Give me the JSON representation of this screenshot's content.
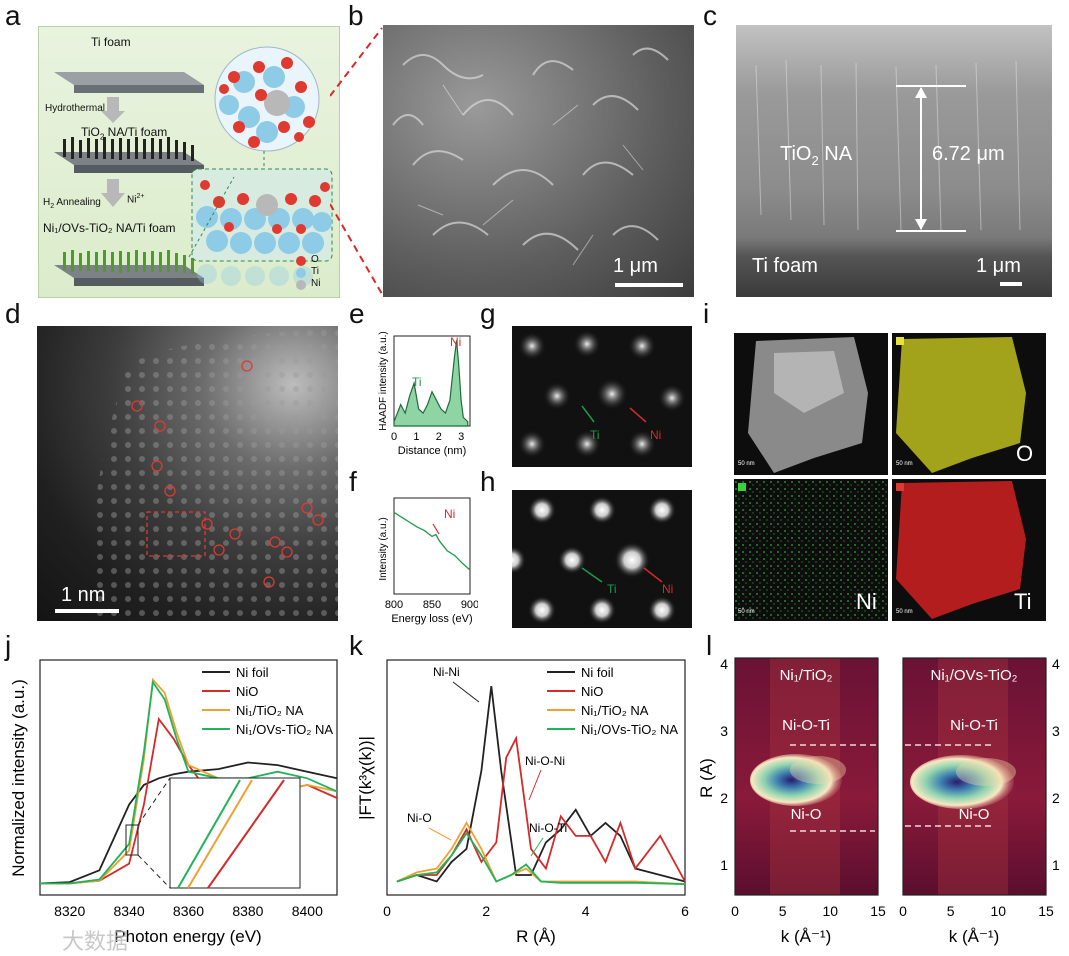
{
  "panel_labels": {
    "a": "a",
    "b": "b",
    "c": "c",
    "d": "d",
    "e": "e",
    "f": "f",
    "g": "g",
    "h": "h",
    "i": "i",
    "j": "j",
    "k": "k",
    "l": "l"
  },
  "panel_a": {
    "step1": "Ti foam",
    "arrow1": "Hydrothermal",
    "step2_pre": "TiO",
    "step2_sub": "2",
    "step2_post": " NA/Ti foam",
    "arrow2a_pre": "H",
    "arrow2a_sub": "2",
    "arrow2a_post": " Annealing",
    "arrow2b_pre": "Ni",
    "arrow2b_sup": "2+",
    "step3": "Ni₁/OVs-TiO₂ NA/Ti foam",
    "legend": [
      {
        "label": "O",
        "color": "#e03a30"
      },
      {
        "label": "Ti",
        "color": "#8ecbe6"
      },
      {
        "label": "Ni",
        "color": "#b8b8b8"
      }
    ]
  },
  "panel_b": {
    "scale": "1 μm"
  },
  "panel_c": {
    "material_pre": "TiO",
    "material_sub": "2",
    "material_post": " NA",
    "thickness": "6.72 μm",
    "substrate": "Ti foam",
    "scale": "1 μm"
  },
  "panel_d": {
    "scale": "1 nm"
  },
  "panel_e": {
    "ylabel": "HAADF intensity (a.u.)",
    "xlabel": "Distance (nm)",
    "ticks": [
      "0",
      "1",
      "2",
      "3"
    ],
    "peak_ti": "Ti",
    "peak_ni": "Ni"
  },
  "panel_f": {
    "ylabel": "Intensity (a.u.)",
    "xlabel": "Energy loss (eV)",
    "ticks": [
      "800",
      "850",
      "900"
    ],
    "peak": "Ni"
  },
  "panel_g": {
    "ti": "Ti",
    "ni": "Ni"
  },
  "panel_h": {
    "ti": "Ti",
    "ni": "Ni"
  },
  "panel_i": {
    "scales": [
      "50 nm",
      "50 nm",
      "50 nm",
      "50 nm"
    ],
    "maps": [
      "O",
      "Ni",
      "Ti"
    ]
  },
  "panel_j": {
    "ylabel": "Normalized intensity (a.u.)",
    "xlabel": "Photon energy (eV)",
    "ticks": [
      "8320",
      "8340",
      "8360",
      "8380",
      "8400"
    ]
  },
  "panel_k": {
    "ylabel": "|FT(k³χ(k))|",
    "xlabel": "R (Å)",
    "ticks": [
      "0",
      "2",
      "4",
      "6"
    ],
    "annotations": {
      "nini": "Ni-Ni",
      "nio": "Ni-O",
      "nioni": "Ni-O-Ni",
      "nioti": "Ni-O-Ti"
    }
  },
  "panel_l": {
    "ylabel": "R (Å)",
    "xlabel": "k (Å⁻¹)",
    "yticks": [
      "1",
      "2",
      "3",
      "4"
    ],
    "xticks": [
      "0",
      "5",
      "10",
      "15"
    ],
    "maps": [
      {
        "title": "Ni₁/TiO₂",
        "upper": "Ni-O-Ti",
        "lower": "Ni-O"
      },
      {
        "title": "Ni₁/OVs-TiO₂",
        "upper": "Ni-O-Ti",
        "lower": "Ni-O"
      }
    ]
  },
  "watermark": "大数据",
  "chart_data": [
    {
      "type": "line",
      "title": "",
      "xlabel": "Distance (nm)",
      "ylabel": "HAADF intensity (a.u.)",
      "xlim": [
        0,
        3.4
      ],
      "series": [
        {
          "name": "",
          "x": [
            0,
            0.3,
            0.5,
            0.7,
            0.9,
            1.1,
            1.3,
            1.5,
            1.7,
            1.9,
            2.1,
            2.3,
            2.5,
            2.7,
            2.8,
            2.9,
            3.0,
            3.1,
            3.3
          ],
          "y": [
            0.05,
            0.25,
            0.15,
            0.35,
            0.5,
            0.2,
            0.15,
            0.25,
            0.4,
            0.3,
            0.2,
            0.15,
            0.3,
            0.8,
            1.0,
            0.7,
            0.3,
            0.1,
            0.05
          ]
        }
      ]
    },
    {
      "type": "line",
      "title": "",
      "xlabel": "Energy loss (eV)",
      "ylabel": "Intensity (a.u.)",
      "xlim": [
        800,
        900
      ],
      "series": [
        {
          "name": "",
          "x": [
            800,
            810,
            820,
            830,
            840,
            850,
            855,
            860,
            870,
            880,
            890,
            900
          ],
          "y": [
            0.85,
            0.8,
            0.75,
            0.7,
            0.66,
            0.6,
            0.62,
            0.55,
            0.45,
            0.4,
            0.32,
            0.25
          ]
        }
      ]
    },
    {
      "type": "line",
      "title": "",
      "xlabel": "Photon energy (eV)",
      "ylabel": "Normalized intensity (a.u.)",
      "xlim": [
        8310,
        8410
      ],
      "series": [
        {
          "name": "Ni foil",
          "color": "#222222",
          "x": [
            8310,
            8320,
            8330,
            8335,
            8340,
            8345,
            8350,
            8355,
            8360,
            8370,
            8380,
            8390,
            8400,
            8410
          ],
          "y": [
            0.05,
            0.06,
            0.15,
            0.4,
            0.65,
            0.8,
            0.85,
            0.88,
            0.9,
            0.92,
            0.97,
            0.95,
            0.9,
            0.85
          ]
        },
        {
          "name": "NiO",
          "color": "#d42a2a",
          "x": [
            8310,
            8320,
            8330,
            8340,
            8345,
            8350,
            8355,
            8360,
            8365,
            8370,
            8380,
            8390,
            8400,
            8410
          ],
          "y": [
            0.05,
            0.05,
            0.07,
            0.2,
            0.65,
            1.3,
            1.15,
            0.95,
            0.8,
            0.85,
            0.8,
            0.75,
            0.8,
            0.7
          ]
        },
        {
          "name": "Ni₁/TiO₂ NA",
          "color": "#f0a030",
          "x": [
            8310,
            8320,
            8330,
            8340,
            8345,
            8348,
            8352,
            8356,
            8360,
            8370,
            8380,
            8390,
            8400,
            8410
          ],
          "y": [
            0.05,
            0.05,
            0.07,
            0.3,
            1.0,
            1.6,
            1.5,
            1.2,
            0.95,
            0.85,
            0.8,
            0.75,
            0.8,
            0.75
          ]
        },
        {
          "name": "Ni₁/OVs-TiO₂ NA",
          "color": "#20b45a",
          "x": [
            8310,
            8320,
            8330,
            8340,
            8345,
            8348,
            8352,
            8356,
            8360,
            8370,
            8380,
            8390,
            8400,
            8410
          ],
          "y": [
            0.05,
            0.05,
            0.08,
            0.35,
            1.05,
            1.58,
            1.45,
            1.15,
            0.9,
            0.85,
            0.85,
            0.9,
            0.85,
            0.75
          ]
        }
      ]
    },
    {
      "type": "line",
      "title": "",
      "xlabel": "R (Å)",
      "ylabel": "|FT(k³χ(k))|",
      "xlim": [
        0,
        6
      ],
      "series": [
        {
          "name": "Ni foil",
          "color": "#222222",
          "x": [
            0.2,
            0.6,
            1.0,
            1.3,
            1.6,
            1.9,
            2.1,
            2.3,
            2.6,
            2.9,
            3.2,
            3.5,
            3.8,
            4.1,
            4.4,
            4.7,
            5.0,
            5.5,
            6.0
          ],
          "y": [
            0.05,
            0.1,
            0.05,
            0.2,
            0.3,
            0.9,
            1.55,
            0.9,
            0.1,
            0.1,
            0.35,
            0.45,
            0.6,
            0.4,
            0.5,
            0.4,
            0.15,
            0.1,
            0.05
          ]
        },
        {
          "name": "NiO",
          "color": "#d42a2a",
          "x": [
            0.2,
            0.6,
            1.0,
            1.3,
            1.6,
            1.9,
            2.2,
            2.4,
            2.6,
            2.9,
            3.2,
            3.5,
            3.8,
            4.1,
            4.4,
            4.7,
            5.0,
            5.5,
            6.0
          ],
          "y": [
            0.05,
            0.1,
            0.1,
            0.25,
            0.45,
            0.2,
            0.35,
            1.0,
            1.15,
            0.3,
            0.15,
            0.55,
            0.4,
            0.4,
            0.2,
            0.5,
            0.15,
            0.4,
            0.05
          ]
        },
        {
          "name": "Ni₁/TiO₂ NA",
          "color": "#f0a030",
          "x": [
            0.2,
            0.6,
            1.0,
            1.3,
            1.6,
            1.9,
            2.2,
            2.5,
            2.8,
            3.1,
            3.5,
            4.0,
            5.0,
            6.0
          ],
          "y": [
            0.05,
            0.12,
            0.15,
            0.3,
            0.5,
            0.3,
            0.05,
            0.1,
            0.15,
            0.05,
            0.05,
            0.05,
            0.05,
            0.03
          ]
        },
        {
          "name": "Ni₁/OVs-TiO₂ NA",
          "color": "#20b45a",
          "x": [
            0.2,
            0.6,
            1.0,
            1.3,
            1.6,
            1.9,
            2.2,
            2.5,
            2.8,
            3.1,
            3.5,
            4.0,
            5.0,
            6.0
          ],
          "y": [
            0.05,
            0.1,
            0.12,
            0.25,
            0.42,
            0.25,
            0.05,
            0.1,
            0.18,
            0.05,
            0.04,
            0.04,
            0.04,
            0.03
          ]
        }
      ]
    }
  ]
}
